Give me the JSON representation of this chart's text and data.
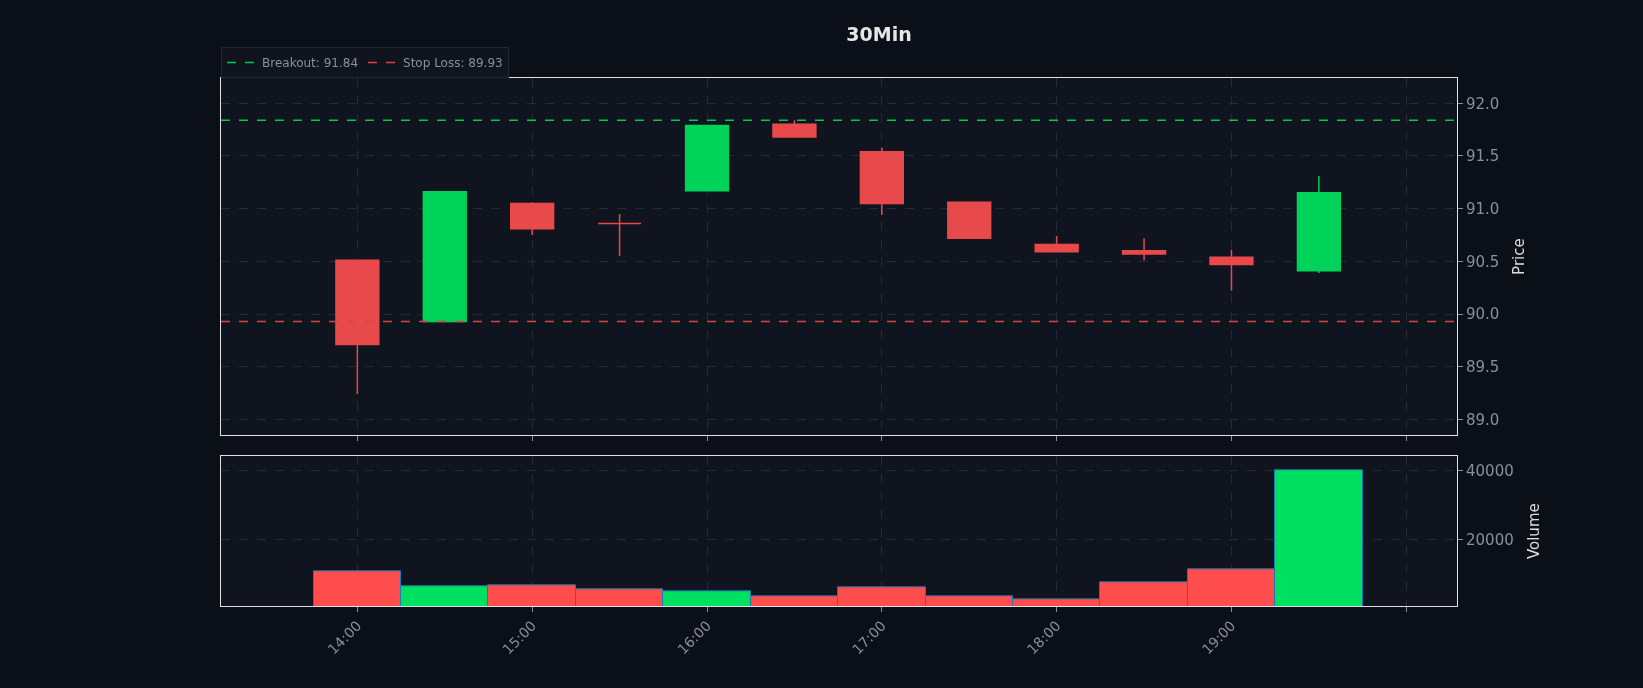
{
  "chart_data": [
    {
      "type": "candlestick",
      "title": "30Min",
      "ylabel": "Price",
      "x": [
        14,
        14.5,
        15,
        15.5,
        16,
        16.5,
        17,
        17.5,
        18,
        18.5,
        19,
        19.5
      ],
      "ohlc": [
        [
          90.51,
          90.51,
          89.24,
          89.71
        ],
        [
          89.93,
          91.16,
          89.93,
          91.16
        ],
        [
          91.05,
          91.06,
          90.75,
          90.81
        ],
        [
          90.86,
          90.95,
          90.55,
          90.86
        ],
        [
          91.17,
          91.79,
          91.17,
          91.79
        ],
        [
          91.8,
          91.84,
          91.68,
          91.68
        ],
        [
          91.54,
          91.58,
          90.94,
          91.05
        ],
        [
          91.06,
          91.06,
          90.72,
          90.72
        ],
        [
          90.66,
          90.74,
          90.59,
          90.59
        ],
        [
          90.6,
          90.72,
          90.51,
          90.57
        ],
        [
          90.54,
          90.61,
          90.22,
          90.47
        ],
        [
          90.41,
          91.31,
          90.39,
          91.15
        ]
      ],
      "colors": [
        "#e84a4c",
        "#00d25a",
        "#e84a4c",
        "#e84a4c",
        "#00d25a",
        "#e84a4c",
        "#e84a4c",
        "#e84a4c",
        "#e84a4c",
        "#e84a4c",
        "#e84a4c",
        "#00d25a"
      ],
      "xlim": [
        13.22,
        20.29
      ],
      "xticks": [
        14,
        15,
        16,
        17,
        18,
        19,
        20
      ],
      "ylim": [
        88.85,
        92.24
      ],
      "yticks": [
        {
          "value": 89,
          "label": "89.0"
        },
        {
          "value": 89.5,
          "label": "89.5"
        },
        {
          "value": 90,
          "label": "90.0"
        },
        {
          "value": 90.5,
          "label": "90.5"
        },
        {
          "value": 91,
          "label": "91.0"
        },
        {
          "value": 91.5,
          "label": "91.5"
        },
        {
          "value": 92,
          "label": "92.0"
        }
      ],
      "ref_lines": [
        {
          "axis": "y",
          "value": 91.84,
          "label": "Breakout: 91.84",
          "color": "#00c853",
          "line_style": "dashed"
        },
        {
          "axis": "y",
          "value": 89.93,
          "label": "Stop Loss: 89.93",
          "color": "#d9434a",
          "line_style": "dashed"
        }
      ],
      "legend": "top left",
      "grid": true,
      "tick_labels": "y"
    },
    {
      "type": "bar",
      "ylabel": "Volume",
      "x": [
        14,
        14.5,
        15,
        15.5,
        16,
        16.5,
        17,
        17.5,
        18,
        18.5,
        19,
        19.5
      ],
      "values": [
        11000,
        6600,
        6800,
        5900,
        5100,
        3900,
        6300,
        3900,
        2900,
        7800,
        11500,
        40000
      ],
      "colors": [
        "#ff4d4d",
        "#00e060",
        "#ff4d4d",
        "#ff4d4d",
        "#00e060",
        "#ff4d4d",
        "#ff4d4d",
        "#ff4d4d",
        "#ff4d4d",
        "#ff4d4d",
        "#ff4d4d",
        "#00e060"
      ],
      "xlim": [
        13.22,
        20.29
      ],
      "xticks": [
        {
          "value": 14,
          "label": "14:00"
        },
        {
          "value": 15,
          "label": "15:00"
        },
        {
          "value": 16,
          "label": "16:00"
        },
        {
          "value": 17,
          "label": "17:00"
        },
        {
          "value": 18,
          "label": "18:00"
        },
        {
          "value": 19,
          "label": "19:00"
        },
        {
          "value": 20,
          "label": null
        }
      ],
      "ylim": [
        1000,
        44000
      ],
      "yticks": [
        20000,
        40000
      ],
      "grid": true
    }
  ]
}
